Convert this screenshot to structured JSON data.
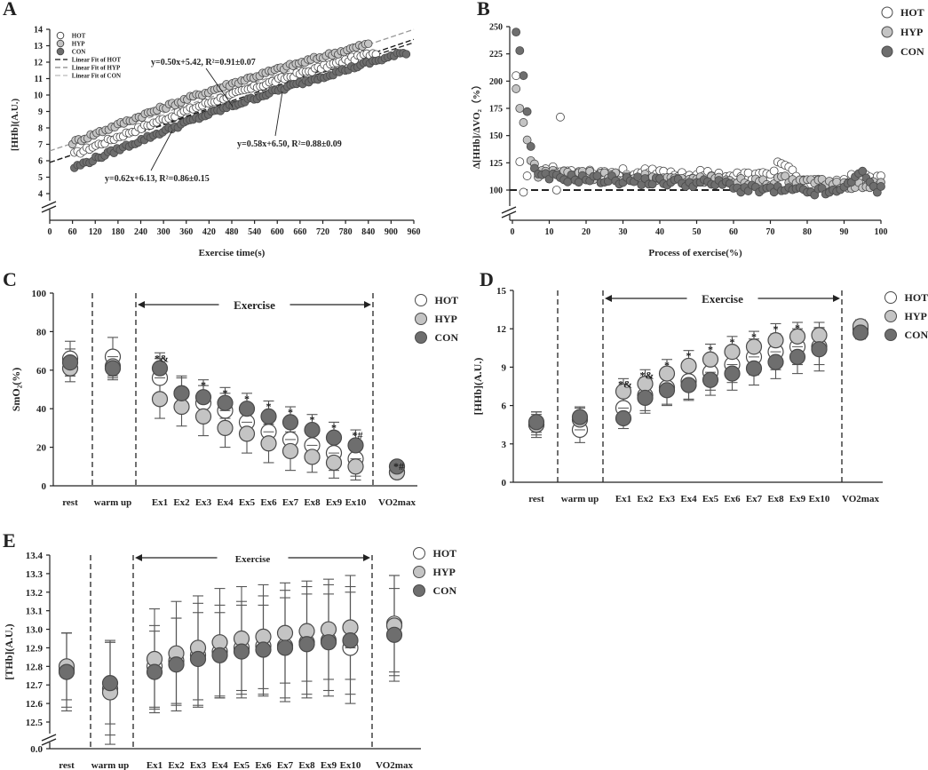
{
  "colors": {
    "hot": "#ffffff",
    "hyp": "#c4c4c4",
    "con": "#6e6e6e",
    "stroke": "#4a4a4a",
    "axis": "#222222"
  },
  "legend": {
    "hot": "HOT",
    "hyp": "HYP",
    "con": "CON"
  },
  "chart_data": [
    {
      "id": "A",
      "panel_label": "A",
      "type": "scatter",
      "xlabel": "Exercise time(s)",
      "ylabel": "[HHb](A.U.)",
      "xlim": [
        0,
        960
      ],
      "ylim": [
        3,
        14
      ],
      "xticks": [
        0,
        60,
        120,
        180,
        240,
        300,
        360,
        420,
        480,
        540,
        600,
        660,
        720,
        780,
        840,
        900,
        960
      ],
      "yticks": [
        4,
        5,
        6,
        7,
        8,
        9,
        10,
        11,
        12,
        13,
        14
      ],
      "legend_extra": [
        "Linear Fit of HOT",
        "Linear Fit of HYP",
        "Linear Fit of CON"
      ],
      "annotations": [
        {
          "id": "hyp",
          "text": "y=0.50x+5.42, R²=0.91±0.07"
        },
        {
          "id": "hot",
          "text": "y=0.58x+6.50, R²=0.88±0.09"
        },
        {
          "id": "con",
          "text": "y=0.62x+6.13, R²=0.86±0.15"
        }
      ],
      "series": [
        {
          "name": "HOT",
          "x_start": 65,
          "x_end": 860,
          "y_start": 6.4,
          "y_end": 12.6,
          "fit": [
            0.0078,
            5.9
          ]
        },
        {
          "name": "HYP",
          "x_start": 60,
          "x_end": 840,
          "y_start": 7.1,
          "y_end": 13.1,
          "fit": [
            0.0077,
            6.6
          ]
        },
        {
          "name": "CON",
          "x_start": 65,
          "x_end": 940,
          "y_start": 5.6,
          "y_end": 12.6,
          "fit": [
            0.0076,
            5.9
          ]
        }
      ]
    },
    {
      "id": "B",
      "panel_label": "B",
      "type": "scatter",
      "xlabel": "Process of exercise(%)",
      "ylabel": "Δ[HHb]/ΔVO₂（%）",
      "xlim": [
        0,
        100
      ],
      "ylim": [
        85,
        250
      ],
      "xticks": [
        0,
        10,
        20,
        30,
        40,
        50,
        60,
        70,
        80,
        90,
        100
      ],
      "yticks": [
        100,
        125,
        150,
        175,
        200,
        225,
        250
      ],
      "reference_line": 100,
      "series": [
        {
          "name": "HOT",
          "early": [
            [
              1,
              205
            ],
            [
              2,
              126
            ],
            [
              3,
              98
            ],
            [
              4,
              113
            ],
            [
              13,
              167
            ],
            [
              12,
              100
            ]
          ],
          "level_start": 118,
          "level_end": 110,
          "bump": [
            73,
            123
          ]
        },
        {
          "name": "HYP",
          "early": [
            [
              1,
              193
            ],
            [
              2,
              175
            ],
            [
              3,
              162
            ],
            [
              4,
              146
            ],
            [
              5,
              127
            ],
            [
              6,
              124
            ]
          ],
          "level_start": 115,
          "level_end": 104,
          "bump": [
            74,
            106
          ]
        },
        {
          "name": "CON",
          "early": [
            [
              1,
              245
            ],
            [
              2,
              228
            ],
            [
              3,
              205
            ],
            [
              4,
              172
            ],
            [
              5,
              140
            ],
            [
              6,
              120
            ]
          ],
          "level_start": 112,
          "level_end": 100,
          "bump": [
            94,
            115
          ]
        }
      ]
    },
    {
      "id": "C",
      "panel_label": "C",
      "type": "scatter",
      "ylabel": "SmO₂(%)",
      "ylim": [
        0,
        100
      ],
      "yticks": [
        0,
        20,
        40,
        60,
        80,
        100
      ],
      "categories": [
        "rest",
        "warm up",
        "Ex1",
        "Ex2",
        "Ex3",
        "Ex4",
        "Ex5",
        "Ex6",
        "Ex7",
        "Ex8",
        "Ex9",
        "Ex10",
        "VO2max"
      ],
      "exercise_label": "Exercise",
      "series": [
        {
          "name": "HOT",
          "values": [
            66,
            67,
            56,
            48,
            43,
            39,
            33,
            28,
            24,
            21,
            17,
            14,
            7
          ],
          "errors": [
            9,
            10,
            10,
            9,
            9,
            9,
            9,
            9,
            9,
            9,
            9,
            9,
            3
          ]
        },
        {
          "name": "HYP",
          "values": [
            61,
            62,
            45,
            41,
            36,
            30,
            27,
            22,
            18,
            15,
            12,
            10,
            7
          ],
          "errors": [
            7,
            6,
            10,
            10,
            10,
            10,
            10,
            10,
            10,
            8,
            8,
            7,
            3
          ]
        },
        {
          "name": "CON",
          "values": [
            64,
            61,
            61,
            48,
            46,
            43,
            40,
            36,
            33,
            29,
            25,
            21,
            10
          ],
          "errors": [
            7,
            6,
            8,
            8,
            9,
            8,
            8,
            8,
            8,
            8,
            8,
            8,
            3
          ]
        }
      ],
      "significance": [
        "",
        "",
        "*&",
        "",
        "*",
        "*",
        "*",
        "*",
        "*",
        "*",
        "*",
        "*#",
        "*#"
      ]
    },
    {
      "id": "D",
      "panel_label": "D",
      "type": "scatter",
      "ylabel": "[HHb](A.U.)",
      "ylim": [
        0,
        15
      ],
      "yticks": [
        0,
        3,
        6,
        9,
        12,
        15
      ],
      "categories": [
        "rest",
        "warm up",
        "Ex1",
        "Ex2",
        "Ex3",
        "Ex4",
        "Ex5",
        "Ex6",
        "Ex7",
        "Ex8",
        "Ex9",
        "Ex10",
        "VO2max"
      ],
      "exercise_label": "Exercise",
      "series": [
        {
          "name": "HOT",
          "values": [
            4.5,
            4.1,
            5.8,
            6.8,
            7.4,
            7.9,
            8.6,
            9.2,
            9.8,
            10.2,
            10.6,
            10.6,
            12.0
          ],
          "errors": [
            1.0,
            1.0,
            1.2,
            1.4,
            1.4,
            1.4,
            1.4,
            1.4,
            1.4,
            1.4,
            1.4,
            1.4,
            0.6
          ]
        },
        {
          "name": "HYP",
          "values": [
            4.5,
            4.9,
            7.1,
            7.7,
            8.5,
            9.1,
            9.6,
            10.2,
            10.6,
            11.1,
            11.4,
            11.5,
            12.2
          ],
          "errors": [
            0.8,
            0.9,
            1.0,
            1.1,
            1.1,
            1.2,
            1.2,
            1.2,
            1.2,
            1.3,
            1.1,
            1.0,
            0.5
          ]
        },
        {
          "name": "CON",
          "values": [
            4.7,
            5.1,
            5.0,
            6.6,
            7.2,
            7.6,
            8.0,
            8.5,
            8.9,
            9.4,
            9.8,
            10.4,
            11.7
          ],
          "errors": [
            0.8,
            0.8,
            0.8,
            1.0,
            1.1,
            1.2,
            1.2,
            1.3,
            1.3,
            1.3,
            1.3,
            1.7,
            0.5
          ]
        }
      ],
      "significance": [
        "",
        "",
        "*&",
        "*&",
        "*",
        "*",
        "*",
        "*",
        "*",
        "*",
        "*",
        "",
        ""
      ]
    },
    {
      "id": "E",
      "panel_label": "E",
      "type": "scatter",
      "ylabel": "[THb](A.U.)",
      "ylim": [
        12.45,
        13.4
      ],
      "yticks": [
        12.5,
        12.6,
        12.7,
        12.8,
        12.9,
        13.0,
        13.1,
        13.2,
        13.3,
        13.4
      ],
      "extra_ytick": 0.0,
      "categories": [
        "rest",
        "warm up",
        "Ex1",
        "Ex2",
        "Ex3",
        "Ex4",
        "Ex5",
        "Ex6",
        "Ex7",
        "Ex8",
        "Ex9",
        "Ex10",
        "VO2max"
      ],
      "exercise_label": "Exercise",
      "series": [
        {
          "name": "HOT",
          "values": [
            12.78,
            12.68,
            12.8,
            12.83,
            12.86,
            12.88,
            12.9,
            12.91,
            12.91,
            12.93,
            12.94,
            12.9,
            13.03
          ],
          "errors": [
            0.2,
            0.25,
            0.22,
            0.23,
            0.28,
            0.25,
            0.25,
            0.27,
            0.3,
            0.3,
            0.3,
            0.3,
            0.26
          ]
        },
        {
          "name": "HYP",
          "values": [
            12.8,
            12.66,
            12.84,
            12.87,
            12.9,
            12.93,
            12.95,
            12.96,
            12.98,
            12.99,
            13.0,
            13.01,
            13.02
          ],
          "errors": [
            0.18,
            0.28,
            0.27,
            0.28,
            0.28,
            0.29,
            0.28,
            0.28,
            0.27,
            0.27,
            0.27,
            0.28,
            0.27
          ]
        },
        {
          "name": "CON",
          "values": [
            12.77,
            12.71,
            12.77,
            12.81,
            12.84,
            12.86,
            12.88,
            12.89,
            12.9,
            12.92,
            12.93,
            12.94,
            12.97
          ],
          "errors": [
            0.21,
            0.22,
            0.22,
            0.25,
            0.25,
            0.23,
            0.25,
            0.24,
            0.27,
            0.27,
            0.26,
            0.29,
            0.25
          ]
        }
      ]
    }
  ]
}
